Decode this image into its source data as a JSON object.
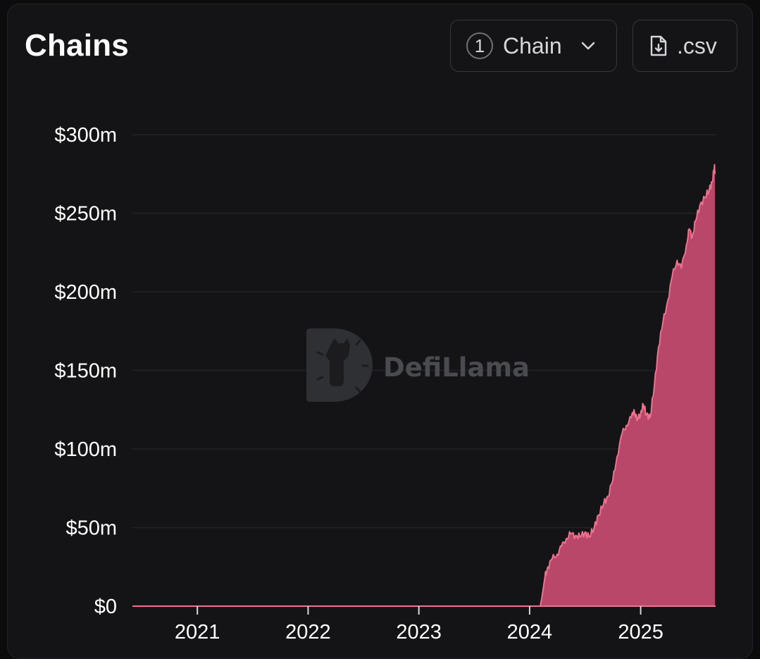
{
  "header": {
    "title": "Chains",
    "chain_selector": {
      "count": "1",
      "label": "Chain",
      "icon": "chevron-down-icon"
    },
    "csv_button": {
      "label": ".csv",
      "icon": "file-download-icon"
    }
  },
  "watermark": {
    "text": "DefiLlama",
    "icon": "llama-logo-icon"
  },
  "colors": {
    "background": "#141416",
    "area_fill": "#b8476a",
    "area_line": "#f0718f",
    "grid": "#222327"
  },
  "chart_data": {
    "type": "area",
    "title": "",
    "xlabel": "",
    "ylabel": "",
    "x_ticks": [
      "2021",
      "2022",
      "2023",
      "2024",
      "2025"
    ],
    "y_ticks": [
      "$0",
      "$50m",
      "$100m",
      "$150m",
      "$200m",
      "$250m",
      "$300m"
    ],
    "y_tick_values": [
      0,
      50,
      100,
      150,
      200,
      250,
      300
    ],
    "ylim": [
      0,
      300
    ],
    "xlim": [
      "2020-06",
      "2025-09"
    ],
    "y_unit": "$m",
    "grid": true,
    "legend": "none",
    "series": [
      {
        "x": [
          "2020-06",
          "2024-02-05",
          "2024-02-10",
          "2024-02-20",
          "2024-03-01",
          "2024-03-15",
          "2024-04-01",
          "2024-04-15",
          "2024-05-01",
          "2024-05-15",
          "2024-06-01",
          "2024-06-15",
          "2024-07-01",
          "2024-07-15",
          "2024-08-01",
          "2024-08-15",
          "2024-09-01",
          "2024-09-15",
          "2024-10-01",
          "2024-10-15",
          "2024-11-01",
          "2024-11-15",
          "2024-12-01",
          "2024-12-10",
          "2024-12-20",
          "2025-01-01",
          "2025-01-10",
          "2025-01-20",
          "2025-02-01",
          "2025-02-15",
          "2025-03-01",
          "2025-03-15",
          "2025-04-01",
          "2025-04-15",
          "2025-05-01",
          "2025-05-15",
          "2025-06-01",
          "2025-06-10",
          "2025-06-20",
          "2025-07-01",
          "2025-07-15",
          "2025-08-01",
          "2025-08-15",
          "2025-08-25",
          "2025-09-01",
          "2025-09-03"
        ],
        "values": [
          0,
          0,
          5,
          18,
          25,
          30,
          33,
          38,
          43,
          46,
          45,
          44,
          47,
          44,
          50,
          58,
          65,
          70,
          80,
          95,
          110,
          115,
          120,
          125,
          118,
          123,
          128,
          122,
          120,
          140,
          165,
          180,
          195,
          210,
          220,
          215,
          230,
          240,
          235,
          245,
          255,
          260,
          265,
          270,
          280,
          275
        ]
      }
    ]
  }
}
